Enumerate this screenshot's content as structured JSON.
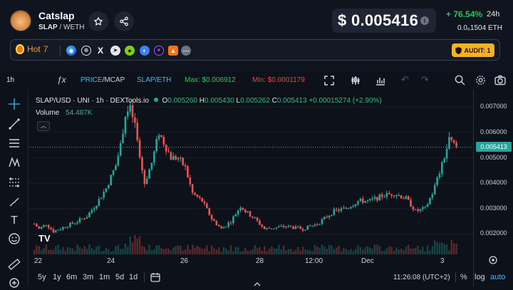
{
  "token": {
    "name": "Catslap",
    "base": "SLAP",
    "quote": "WETH",
    "pair_sep": "/"
  },
  "price": {
    "usd": "$ 0.005416",
    "change": "+ 76.54%",
    "period": "24h",
    "eth": "0.0₆1504",
    "eth_unit": "ETH"
  },
  "hot": {
    "label": "Hot",
    "rank": "7"
  },
  "audit": {
    "label": "AUDIT: 1"
  },
  "toolbar": {
    "interval": "1h",
    "price_label": "PRICE",
    "mcap_label": "/MCAP",
    "pair_label": "SLAP/ETH",
    "max_label": "Max: $0.006912",
    "min_label": "Min: $0.0001179"
  },
  "legend": {
    "symbol": "SLAP/USD · UNI · 1h · DEXTools.io",
    "o_key": "O",
    "o": "0.005260",
    "h_key": "H",
    "h": "0.005430",
    "l_key": "L",
    "l": "0.005262",
    "c_key": "C",
    "c": "0.005413",
    "chg": "+0.00015274 (+2.90%)",
    "volume_label": "Volume",
    "volume": "54.487K"
  },
  "axis": {
    "current": "0.005413",
    "ticks": [
      "0.007000",
      "0.006000",
      "0.005000",
      "0.004000",
      "0.003000",
      "0.002000"
    ]
  },
  "xaxis": [
    "22",
    "24",
    "26",
    "28",
    "12:00",
    "Dec",
    "3"
  ],
  "ranges": [
    "5y",
    "1y",
    "6m",
    "3m",
    "1m",
    "5d",
    "1d"
  ],
  "footer": {
    "time": "11:26:08 (UTC+2)",
    "pct": "%",
    "log": "log",
    "auto": "auto"
  },
  "watermark": "TV",
  "colors": {
    "up": "#26a69a",
    "down": "#ef5350",
    "accent": "#38bdf8",
    "max": "#22c55e",
    "min": "#ef4444",
    "audit": "#f5b324"
  },
  "chart_data": {
    "type": "candlestick",
    "title": "SLAP/USD · UNI · 1h · DEXTools.io",
    "ylim": [
      0.0012,
      0.0077
    ],
    "y_ticks": [
      0.007,
      0.006,
      0.005,
      0.004,
      0.003,
      0.002
    ],
    "anchors": [
      [
        0,
        0.0024
      ],
      [
        2,
        0.0022
      ],
      [
        5,
        0.0024
      ],
      [
        8,
        0.0021
      ],
      [
        13,
        0.0023
      ],
      [
        18,
        0.0025
      ],
      [
        22,
        0.0027
      ],
      [
        26,
        0.0032
      ],
      [
        30,
        0.0038
      ],
      [
        34,
        0.0047
      ],
      [
        36,
        0.0055
      ],
      [
        38,
        0.0067
      ],
      [
        40,
        0.0069
      ],
      [
        42,
        0.0063
      ],
      [
        44,
        0.005
      ],
      [
        46,
        0.004
      ],
      [
        49,
        0.0048
      ],
      [
        52,
        0.006
      ],
      [
        55,
        0.0054
      ],
      [
        57,
        0.005
      ],
      [
        60,
        0.005
      ],
      [
        63,
        0.0046
      ],
      [
        66,
        0.0036
      ],
      [
        70,
        0.0033
      ],
      [
        74,
        0.0026
      ],
      [
        78,
        0.0022
      ],
      [
        82,
        0.0025
      ],
      [
        86,
        0.0031
      ],
      [
        88,
        0.0029
      ],
      [
        92,
        0.0026
      ],
      [
        96,
        0.0022
      ],
      [
        105,
        0.0023
      ],
      [
        112,
        0.0022
      ],
      [
        118,
        0.0024
      ],
      [
        125,
        0.0029
      ],
      [
        130,
        0.003
      ],
      [
        135,
        0.0033
      ],
      [
        140,
        0.0033
      ],
      [
        145,
        0.0035
      ],
      [
        150,
        0.0036
      ],
      [
        155,
        0.0034
      ],
      [
        159,
        0.0029
      ],
      [
        163,
        0.003
      ],
      [
        166,
        0.0036
      ],
      [
        170,
        0.0047
      ],
      [
        173,
        0.0057
      ],
      [
        176,
        0.0054
      ]
    ],
    "current": 0.005413
  }
}
